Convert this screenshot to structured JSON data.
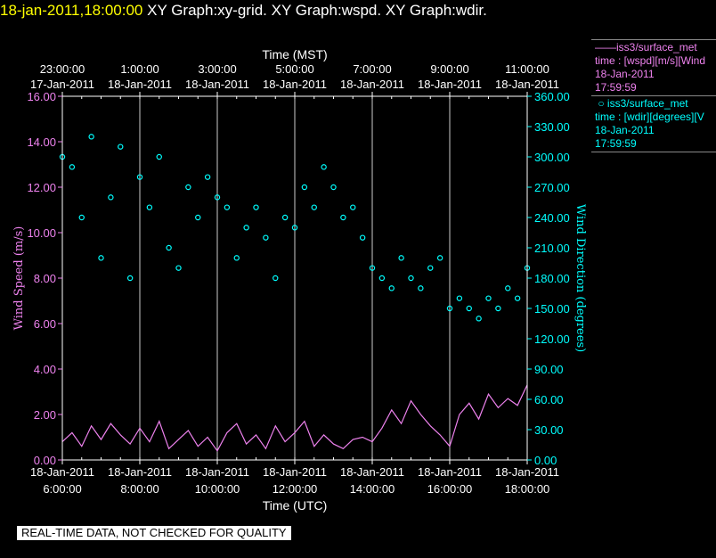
{
  "header": {
    "timestamp": "18-jan-2011,18:00:00",
    "graphs": "XY Graph:xy-grid.  XY Graph:wspd.  XY Graph:wdir."
  },
  "legend": {
    "wspd": {
      "line1": "iss3/surface_met",
      "line2": "time : [wspd][m/s][Wind",
      "line3": "18-Jan-2011",
      "line4": "17:59:59",
      "color": "#ee82ee"
    },
    "wdir": {
      "line1": "iss3/surface_met",
      "line2": "time : [wdir][degrees][V",
      "line3": "18-Jan-2011",
      "line4": "17:59:59",
      "color": "#00ffff"
    }
  },
  "banner": "REAL-TIME DATA, NOT CHECKED FOR QUALITY",
  "chart_data": {
    "type": "line",
    "xlabel_top": "Time (MST)",
    "xlabel_bottom": "Time (UTC)",
    "ylabel_left": "Wind Speed (m/s)",
    "ylabel_right": "Wind Direction (degrees)",
    "x_range_utc_hours": [
      6.0,
      18.0
    ],
    "top_ticks": [
      {
        "time": "23:00:00",
        "date": "17-Jan-2011",
        "utc_hour": 6
      },
      {
        "time": "1:00:00",
        "date": "18-Jan-2011",
        "utc_hour": 8
      },
      {
        "time": "3:00:00",
        "date": "18-Jan-2011",
        "utc_hour": 10
      },
      {
        "time": "5:00:00",
        "date": "18-Jan-2011",
        "utc_hour": 12
      },
      {
        "time": "7:00:00",
        "date": "18-Jan-2011",
        "utc_hour": 14
      },
      {
        "time": "9:00:00",
        "date": "18-Jan-2011",
        "utc_hour": 16
      },
      {
        "time": "11:00:00",
        "date": "18-Jan-2011",
        "utc_hour": 18
      }
    ],
    "bottom_ticks": [
      {
        "date": "18-Jan-2011",
        "time": "6:00:00",
        "utc_hour": 6
      },
      {
        "date": "18-Jan-2011",
        "time": "8:00:00",
        "utc_hour": 8
      },
      {
        "date": "18-Jan-2011",
        "time": "10:00:00",
        "utc_hour": 10
      },
      {
        "date": "18-Jan-2011",
        "time": "12:00:00",
        "utc_hour": 12
      },
      {
        "date": "18-Jan-2011",
        "time": "14:00:00",
        "utc_hour": 14
      },
      {
        "date": "18-Jan-2011",
        "time": "16:00:00",
        "utc_hour": 16
      },
      {
        "date": "18-Jan-2011",
        "time": "18:00:00",
        "utc_hour": 18
      }
    ],
    "left_axis": {
      "min": 0,
      "max": 16,
      "ticks": [
        "0.00",
        "2.00",
        "4.00",
        "6.00",
        "8.00",
        "10.00",
        "12.00",
        "14.00",
        "16.00"
      ]
    },
    "right_axis": {
      "min": 0,
      "max": 360,
      "ticks": [
        "0.00",
        "30.00",
        "60.00",
        "90.00",
        "120.00",
        "150.00",
        "180.00",
        "210.00",
        "240.00",
        "270.00",
        "300.00",
        "330.00",
        "360.00"
      ]
    },
    "grid": true,
    "series": [
      {
        "name": "wspd",
        "axis": "left",
        "color": "#ee82ee",
        "style": "line",
        "x": [
          6.0,
          6.25,
          6.5,
          6.75,
          7.0,
          7.25,
          7.5,
          7.75,
          8.0,
          8.25,
          8.5,
          8.75,
          9.0,
          9.25,
          9.5,
          9.75,
          10.0,
          10.25,
          10.5,
          10.75,
          11.0,
          11.25,
          11.5,
          11.75,
          12.0,
          12.25,
          12.5,
          12.75,
          13.0,
          13.25,
          13.5,
          13.75,
          14.0,
          14.25,
          14.5,
          14.75,
          15.0,
          15.25,
          15.5,
          15.75,
          16.0,
          16.25,
          16.5,
          16.75,
          17.0,
          17.25,
          17.5,
          17.75,
          18.0
        ],
        "y": [
          0.8,
          1.2,
          0.6,
          1.5,
          0.9,
          1.6,
          1.1,
          0.7,
          1.4,
          0.8,
          1.7,
          0.5,
          0.9,
          1.3,
          0.6,
          1.0,
          0.4,
          1.2,
          1.6,
          0.7,
          1.1,
          0.5,
          1.5,
          0.8,
          1.2,
          1.7,
          0.6,
          1.1,
          0.7,
          0.5,
          0.9,
          1.0,
          0.8,
          1.4,
          2.2,
          1.6,
          2.6,
          2.0,
          1.5,
          1.1,
          0.6,
          2.0,
          2.5,
          1.8,
          2.9,
          2.3,
          2.7,
          2.4,
          3.3
        ]
      },
      {
        "name": "wdir",
        "axis": "right",
        "color": "#00ffff",
        "style": "markers",
        "x": [
          6.0,
          6.25,
          6.5,
          6.75,
          7.0,
          7.25,
          7.5,
          7.75,
          8.0,
          8.25,
          8.5,
          8.75,
          9.0,
          9.25,
          9.5,
          9.75,
          10.0,
          10.25,
          10.5,
          10.75,
          11.0,
          11.25,
          11.5,
          11.75,
          12.0,
          12.25,
          12.5,
          12.75,
          13.0,
          13.25,
          13.5,
          13.75,
          14.0,
          14.25,
          14.5,
          14.75,
          15.0,
          15.25,
          15.5,
          15.75,
          16.0,
          16.25,
          16.5,
          16.75,
          17.0,
          17.25,
          17.5,
          17.75,
          18.0
        ],
        "y": [
          300,
          290,
          240,
          320,
          200,
          260,
          310,
          180,
          280,
          250,
          300,
          210,
          190,
          270,
          240,
          280,
          260,
          250,
          200,
          230,
          250,
          220,
          180,
          240,
          230,
          270,
          250,
          290,
          270,
          240,
          250,
          220,
          190,
          180,
          170,
          200,
          180,
          170,
          190,
          200,
          150,
          160,
          150,
          140,
          160,
          150,
          170,
          160,
          190
        ]
      }
    ]
  }
}
